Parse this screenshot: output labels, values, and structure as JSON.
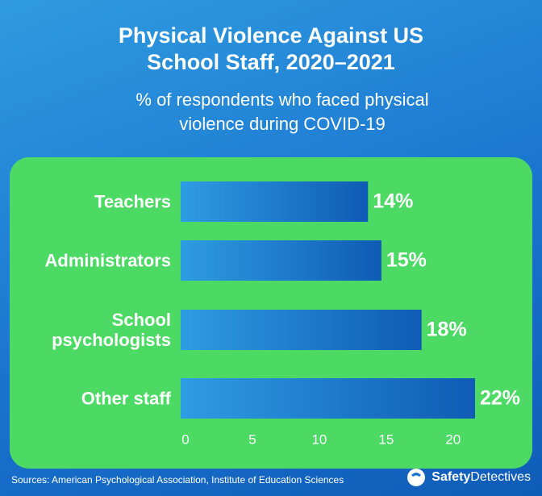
{
  "chart_data": {
    "type": "hbar",
    "title": [
      "Physical Violence Against US",
      "School Staff, 2020–2021"
    ],
    "subtitle": [
      "% of respondents who faced physical",
      "violence during COVID-19"
    ],
    "categories": [
      "Teachers",
      "Administrators",
      "School psychologists",
      "Other staff"
    ],
    "values": [
      14,
      15,
      18,
      22
    ],
    "value_labels": [
      "14%",
      "15%",
      "18%",
      "22%"
    ],
    "xlim": [
      0,
      22
    ],
    "xticks": [
      0,
      5,
      10,
      15,
      20
    ],
    "grid": false
  },
  "source": "Sources: American Psychological Association, Institute of Education Sciences",
  "logo": {
    "bold": "Safety",
    "regular": "Detectives"
  }
}
